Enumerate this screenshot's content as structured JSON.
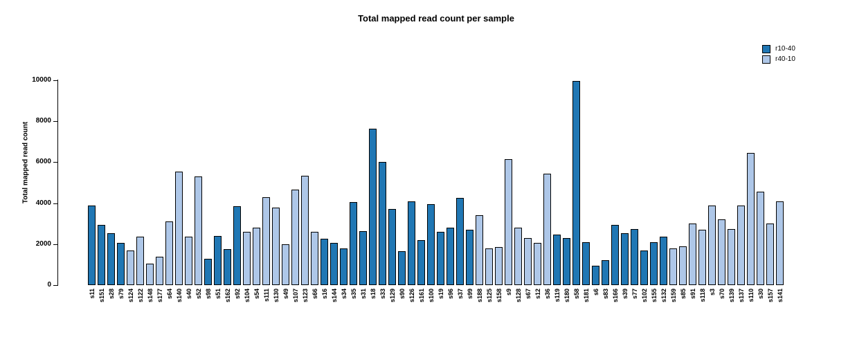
{
  "title": "Total mapped read count per sample",
  "legend": {
    "items": [
      {
        "label": "r10-40",
        "color": "#2077B4"
      },
      {
        "label": "r40-10",
        "color": "#AEC7E8"
      }
    ]
  },
  "chart_data": {
    "type": "bar",
    "title": "Total mapped read count per sample",
    "xlabel": "",
    "ylabel": "Total mapped read count",
    "ylim": [
      0,
      10000
    ],
    "yticks": [
      0,
      2000,
      4000,
      6000,
      8000,
      10000
    ],
    "grid": false,
    "legend_position": "top-right",
    "bar_border_color": "#000000",
    "series_colors": {
      "r10-40": "#2077B4",
      "r40-10": "#AEC7E8"
    },
    "samples": [
      {
        "id": "s11",
        "group": "r10-40",
        "value": 3900
      },
      {
        "id": "s151",
        "group": "r10-40",
        "value": 2950
      },
      {
        "id": "s28",
        "group": "r10-40",
        "value": 2550
      },
      {
        "id": "s79",
        "group": "r10-40",
        "value": 2050
      },
      {
        "id": "s124",
        "group": "r40-10",
        "value": 1700
      },
      {
        "id": "s122",
        "group": "r40-10",
        "value": 2350
      },
      {
        "id": "s148",
        "group": "r40-10",
        "value": 1050
      },
      {
        "id": "s177",
        "group": "r40-10",
        "value": 1400
      },
      {
        "id": "s64",
        "group": "r40-10",
        "value": 3100
      },
      {
        "id": "s140",
        "group": "r40-10",
        "value": 5550
      },
      {
        "id": "s40",
        "group": "r40-10",
        "value": 2350
      },
      {
        "id": "s52",
        "group": "r40-10",
        "value": 5300
      },
      {
        "id": "s98",
        "group": "r10-40",
        "value": 1300
      },
      {
        "id": "s51",
        "group": "r10-40",
        "value": 2400
      },
      {
        "id": "s162",
        "group": "r10-40",
        "value": 1750
      },
      {
        "id": "s92",
        "group": "r10-40",
        "value": 3850
      },
      {
        "id": "s104",
        "group": "r40-10",
        "value": 2600
      },
      {
        "id": "s54",
        "group": "r40-10",
        "value": 2800
      },
      {
        "id": "s111",
        "group": "r40-10",
        "value": 4300
      },
      {
        "id": "s130",
        "group": "r40-10",
        "value": 3800
      },
      {
        "id": "s49",
        "group": "r40-10",
        "value": 2000
      },
      {
        "id": "s107",
        "group": "r40-10",
        "value": 4650
      },
      {
        "id": "s123",
        "group": "r40-10",
        "value": 5350
      },
      {
        "id": "s66",
        "group": "r40-10",
        "value": 2600
      },
      {
        "id": "s16",
        "group": "r10-40",
        "value": 2250
      },
      {
        "id": "s144",
        "group": "r10-40",
        "value": 2050
      },
      {
        "id": "s34",
        "group": "r10-40",
        "value": 1800
      },
      {
        "id": "s35",
        "group": "r10-40",
        "value": 4050
      },
      {
        "id": "s31",
        "group": "r10-40",
        "value": 2650
      },
      {
        "id": "s18",
        "group": "r10-40",
        "value": 7650
      },
      {
        "id": "s33",
        "group": "r10-40",
        "value": 6000
      },
      {
        "id": "s129",
        "group": "r10-40",
        "value": 3700
      },
      {
        "id": "s90",
        "group": "r10-40",
        "value": 1650
      },
      {
        "id": "s126",
        "group": "r10-40",
        "value": 4100
      },
      {
        "id": "s161",
        "group": "r10-40",
        "value": 2200
      },
      {
        "id": "s100",
        "group": "r10-40",
        "value": 3950
      },
      {
        "id": "s19",
        "group": "r10-40",
        "value": 2600
      },
      {
        "id": "s96",
        "group": "r10-40",
        "value": 2800
      },
      {
        "id": "s37",
        "group": "r10-40",
        "value": 4250
      },
      {
        "id": "s99",
        "group": "r10-40",
        "value": 2700
      },
      {
        "id": "s188",
        "group": "r40-10",
        "value": 3400
      },
      {
        "id": "s125",
        "group": "r40-10",
        "value": 1800
      },
      {
        "id": "s158",
        "group": "r40-10",
        "value": 1850
      },
      {
        "id": "s9",
        "group": "r40-10",
        "value": 6150
      },
      {
        "id": "s128",
        "group": "r40-10",
        "value": 2800
      },
      {
        "id": "s67",
        "group": "r40-10",
        "value": 2300
      },
      {
        "id": "s12",
        "group": "r40-10",
        "value": 2050
      },
      {
        "id": "s36",
        "group": "r40-10",
        "value": 5450
      },
      {
        "id": "s119",
        "group": "r10-40",
        "value": 2450
      },
      {
        "id": "s180",
        "group": "r10-40",
        "value": 2300
      },
      {
        "id": "s58",
        "group": "r10-40",
        "value": 9950
      },
      {
        "id": "s181",
        "group": "r10-40",
        "value": 2100
      },
      {
        "id": "s6",
        "group": "r10-40",
        "value": 950
      },
      {
        "id": "s83",
        "group": "r10-40",
        "value": 1200
      },
      {
        "id": "s166",
        "group": "r10-40",
        "value": 2950
      },
      {
        "id": "s39",
        "group": "r10-40",
        "value": 2550
      },
      {
        "id": "s77",
        "group": "r10-40",
        "value": 2750
      },
      {
        "id": "s102",
        "group": "r10-40",
        "value": 1700
      },
      {
        "id": "s155",
        "group": "r10-40",
        "value": 2100
      },
      {
        "id": "s132",
        "group": "r10-40",
        "value": 2350
      },
      {
        "id": "s159",
        "group": "r40-10",
        "value": 1800
      },
      {
        "id": "s85",
        "group": "r40-10",
        "value": 1900
      },
      {
        "id": "s91",
        "group": "r40-10",
        "value": 3000
      },
      {
        "id": "s118",
        "group": "r40-10",
        "value": 2700
      },
      {
        "id": "s3",
        "group": "r40-10",
        "value": 3900
      },
      {
        "id": "s70",
        "group": "r40-10",
        "value": 3200
      },
      {
        "id": "s139",
        "group": "r40-10",
        "value": 2750
      },
      {
        "id": "s137",
        "group": "r40-10",
        "value": 3900
      },
      {
        "id": "s110",
        "group": "r40-10",
        "value": 6450
      },
      {
        "id": "s30",
        "group": "r40-10",
        "value": 4550
      },
      {
        "id": "s157",
        "group": "r40-10",
        "value": 3000
      },
      {
        "id": "s141",
        "group": "r40-10",
        "value": 4100
      }
    ]
  }
}
